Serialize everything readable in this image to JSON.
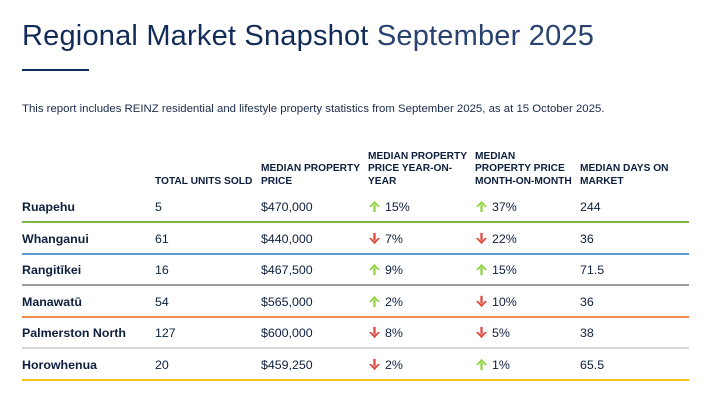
{
  "title_main": "Regional Market Snapshot",
  "title_period": "September 2025",
  "intro": "This report includes REINZ residential and lifestyle property statistics from September 2025, as at 15 October 2025.",
  "columns": [
    "TOTAL UNITS SOLD",
    "MEDIAN PROPERTY PRICE",
    "MEDIAN PROPERTY PRICE YEAR-ON-YEAR",
    "MEDIAN PROPERTY PRICE MONTH-ON-MONTH",
    "MEDIAN DAYS ON MARKET"
  ],
  "colors": {
    "up": "#8ed43f",
    "down": "#e2453a"
  },
  "rows": [
    {
      "region": "Ruapehu",
      "units": "5",
      "price": "$470,000",
      "yoy": "15%",
      "yoy_dir": "up-arrow-icon",
      "mom": "37%",
      "mom_dir": "up-arrow-icon",
      "days": "244",
      "rule_color": "#7ab648"
    },
    {
      "region": "Whanganui",
      "units": "61",
      "price": "$440,000",
      "yoy": "7%",
      "yoy_dir": "down-arrow-icon",
      "mom": "22%",
      "mom_dir": "down-arrow-icon",
      "days": "36",
      "rule_color": "#5a9bd5"
    },
    {
      "region": "Rangitīkei",
      "units": "16",
      "price": "$467,500",
      "yoy": "9%",
      "yoy_dir": "up-arrow-icon",
      "mom": "15%",
      "mom_dir": "up-arrow-icon",
      "days": "71.5",
      "rule_color": "#9e9e9e"
    },
    {
      "region": "Manawatū",
      "units": "54",
      "price": "$565,000",
      "yoy": "2%",
      "yoy_dir": "up-arrow-icon",
      "mom": "10%",
      "mom_dir": "down-arrow-icon",
      "days": "36",
      "rule_color": "#f0894a"
    },
    {
      "region": "Palmerston North",
      "units": "127",
      "price": "$600,000",
      "yoy": "8%",
      "yoy_dir": "down-arrow-icon",
      "mom": "5%",
      "mom_dir": "down-arrow-icon",
      "days": "38",
      "rule_color": "#d6d6d6"
    },
    {
      "region": "Horowhenua",
      "units": "20",
      "price": "$459,250",
      "yoy": "2%",
      "yoy_dir": "down-arrow-icon",
      "mom": "1%",
      "mom_dir": "up-arrow-icon",
      "days": "65.5",
      "rule_color": "#f2c21b"
    }
  ]
}
